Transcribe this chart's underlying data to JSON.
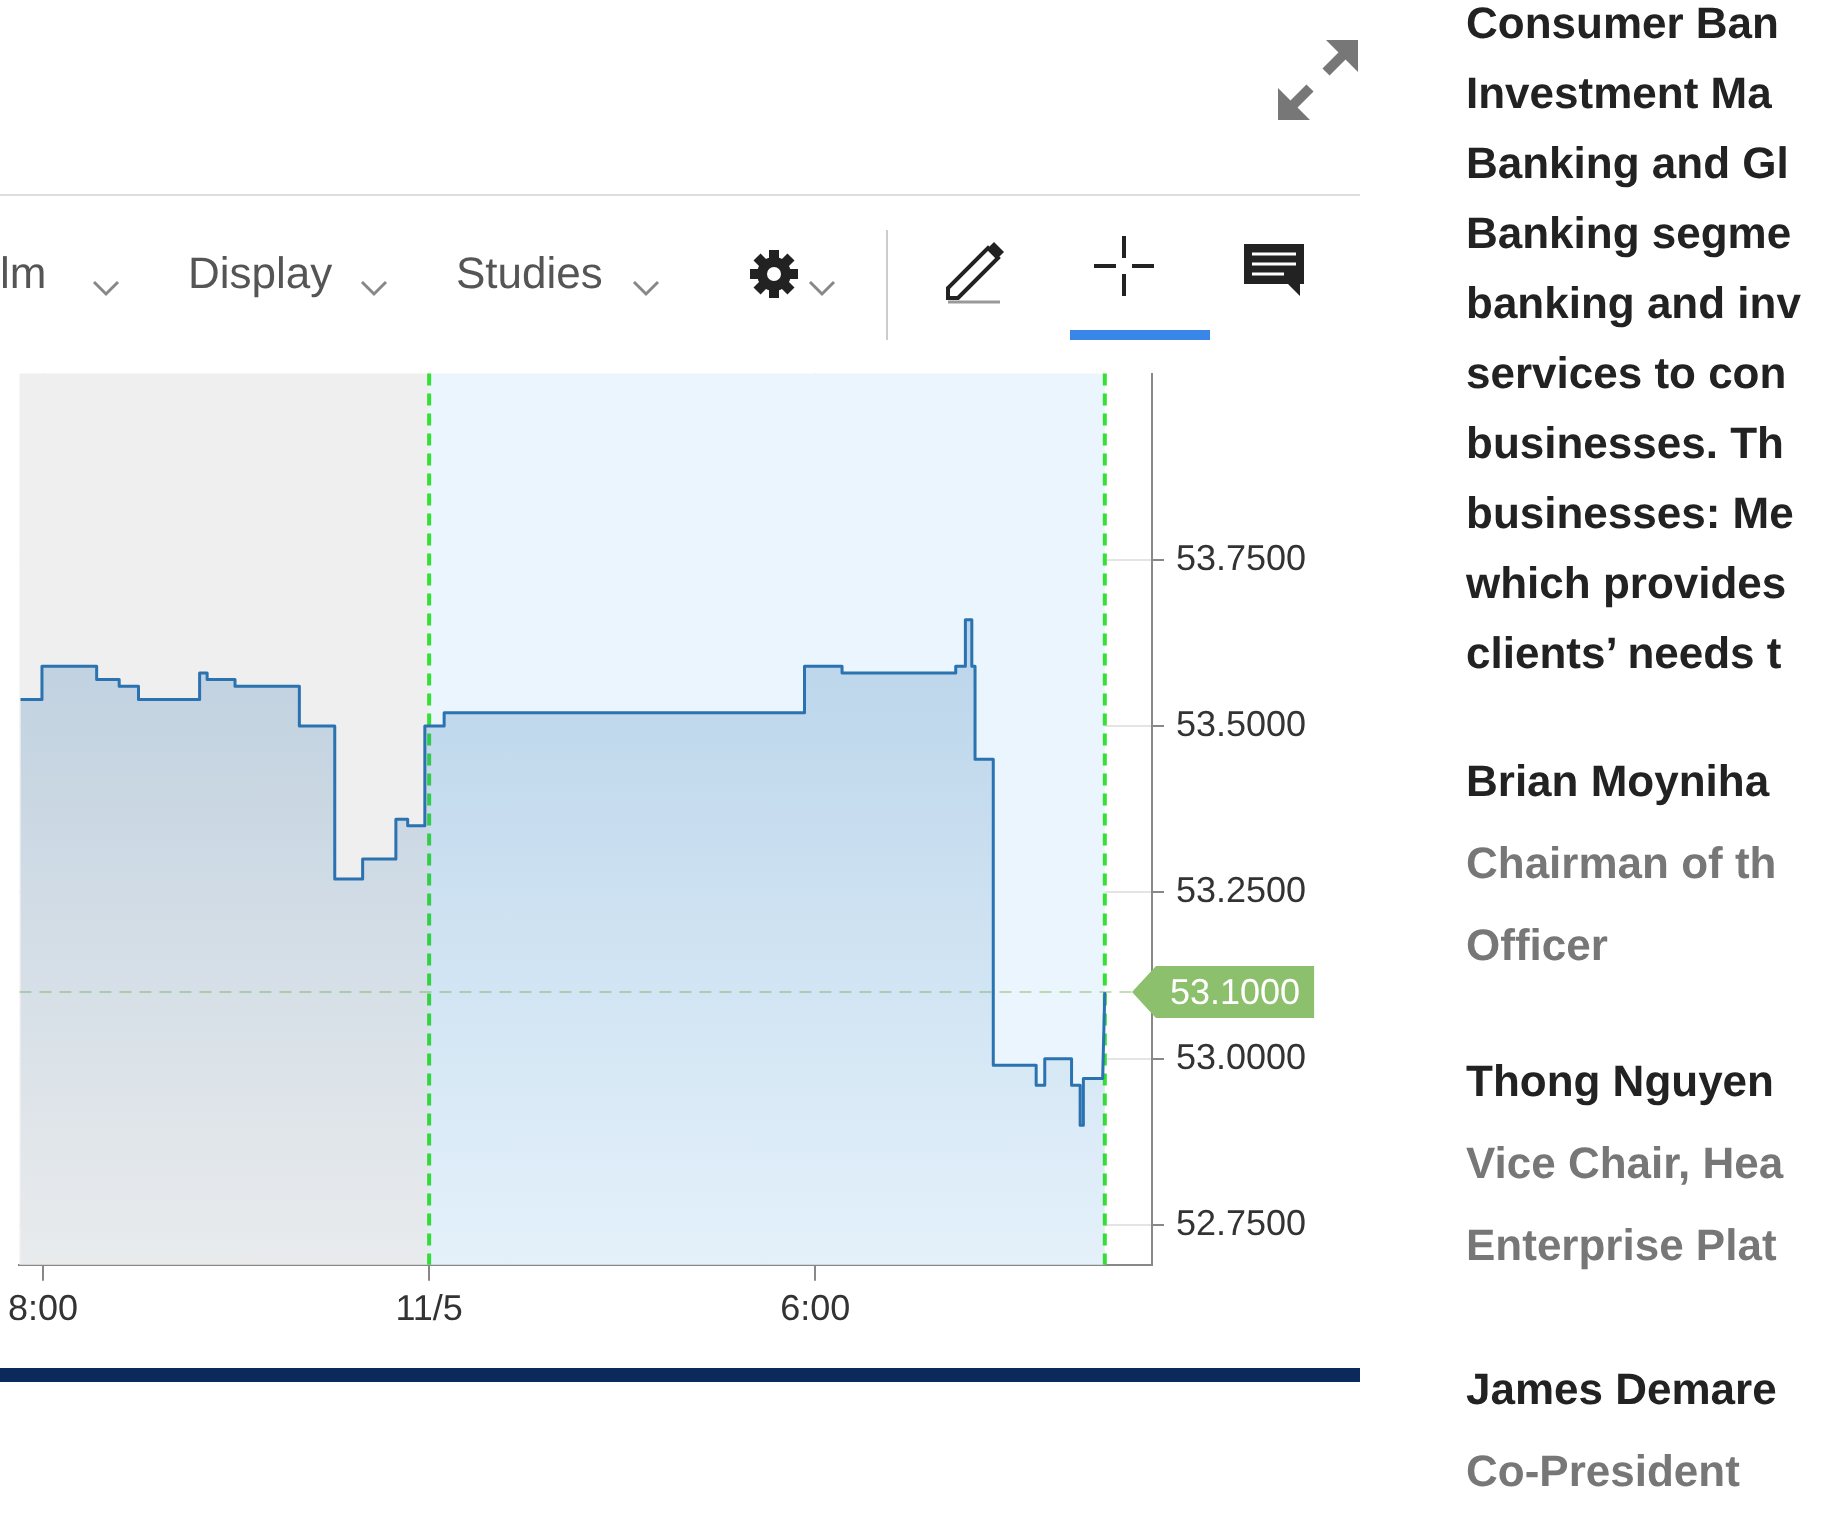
{
  "chart_data": {
    "type": "area",
    "x": [
      "--11-04T17:39",
      "--11-04T17:59",
      "--11-04T17:59",
      "--11-04T18:50",
      "--11-04T18:50",
      "--11-04T19:11",
      "--11-04T19:11",
      "--11-04T19:29",
      "--11-04T19:29",
      "--11-04T20:26",
      "--11-04T20:26",
      "--11-04T20:33",
      "--11-04T20:33",
      "--11-04T20:59",
      "--11-04T20:59",
      "--11-04T21:59",
      "--11-04T21:59",
      "--11-04T22:32",
      "--11-04T22:32",
      "--11-04T22:58",
      "--11-04T22:58",
      "--11-04T23:29",
      "--11-04T23:29",
      "--11-04T23:40",
      "--11-04T23:40",
      "--11-04T23:56",
      "--11-04T23:56",
      "--11-05T00:14",
      "--11-05T00:14",
      "--11-05T05:50",
      "--11-05T05:50",
      "--11-05T06:25",
      "--11-05T06:25",
      "--11-05T08:11",
      "--11-05T08:11",
      "--11-05T08:20",
      "--11-05T08:20",
      "--11-05T08:26",
      "--11-05T08:26",
      "--11-05T08:29",
      "--11-05T08:29",
      "--11-05T08:46",
      "--11-05T08:46",
      "--11-05T09:26",
      "--11-05T09:26",
      "--11-05T09:34",
      "--11-05T09:34",
      "--11-05T09:59",
      "--11-05T09:59",
      "--11-05T10:07",
      "--11-05T10:07",
      "--11-05T10:10",
      "--11-05T10:10",
      "--11-05T10:28",
      "--11-05T10:30"
    ],
    "series": [
      {
        "color": "#2a72b0",
        "values": [
          53.54,
          53.54,
          53.59,
          53.59,
          53.57,
          53.57,
          53.56,
          53.56,
          53.54,
          53.54,
          53.58,
          53.58,
          53.57,
          53.57,
          53.56,
          53.56,
          53.5,
          53.5,
          53.27,
          53.27,
          53.3,
          53.3,
          53.36,
          53.36,
          53.35,
          53.35,
          53.5,
          53.5,
          53.52,
          53.52,
          53.59,
          53.59,
          53.58,
          53.58,
          53.59,
          53.59,
          53.66,
          53.66,
          53.59,
          53.59,
          53.45,
          53.45,
          52.99,
          52.99,
          52.96,
          52.96,
          53.0,
          53.0,
          52.96,
          52.96,
          52.9,
          52.9,
          52.97,
          52.97,
          53.1
        ]
      }
    ],
    "xlim": [
      "--11-04T17:38",
      "--11-05T11:14"
    ],
    "xticks": [
      {
        "value": "--11-04T18:00",
        "label": "8:00"
      },
      {
        "value": "--11-05T00:00",
        "label": "11/5"
      },
      {
        "value": "--11-05T06:00",
        "label": "6:00"
      }
    ],
    "ylim": [
      52.69,
      54.03
    ],
    "yticks": [
      {
        "value": 52.75,
        "label": "52.7500"
      },
      {
        "value": 53,
        "label": "53.0000"
      },
      {
        "value": 53.25,
        "label": "53.2500"
      },
      {
        "value": 53.5,
        "label": "53.5000"
      },
      {
        "value": 53.75,
        "label": "53.7500"
      }
    ],
    "grid": true,
    "legend": false,
    "marker": "none",
    "line_style": "solid",
    "bands": [
      {
        "axis": "x",
        "from": "--11-04T17:38",
        "to": "--11-05T00:00",
        "color": "#efefef"
      },
      {
        "axis": "x",
        "from": "--11-05T00:00",
        "to": "--11-05T10:30",
        "color": "#eaf5fd"
      }
    ],
    "ref_lines": [
      {
        "axis": "x",
        "value": "--11-05T00:00",
        "color": "#33e033",
        "line_style": "dashed"
      },
      {
        "axis": "x",
        "value": "--11-05T10:30",
        "color": "#33e033",
        "line_style": "dashed"
      },
      {
        "axis": "y",
        "value": 53.1,
        "label": "53.1000",
        "color": "#8cc06c",
        "line_style": "dashed"
      }
    ],
    "annotations": [
      "lm",
      "Display",
      "Studies",
      "Consumer Ban",
      "Investment Ma",
      "Banking and Gl",
      "Banking segme",
      "banking and inv",
      "services to con",
      "businesses. Th",
      "businesses: Me",
      "which provides",
      "clients’ needs t",
      "Brian Moyniha",
      "Chairman of th",
      "Officer",
      "Thong Nguyen",
      "Vice Chair, Hea",
      "Enterprise Plat",
      "James Demare",
      "Co-President"
    ]
  }
}
